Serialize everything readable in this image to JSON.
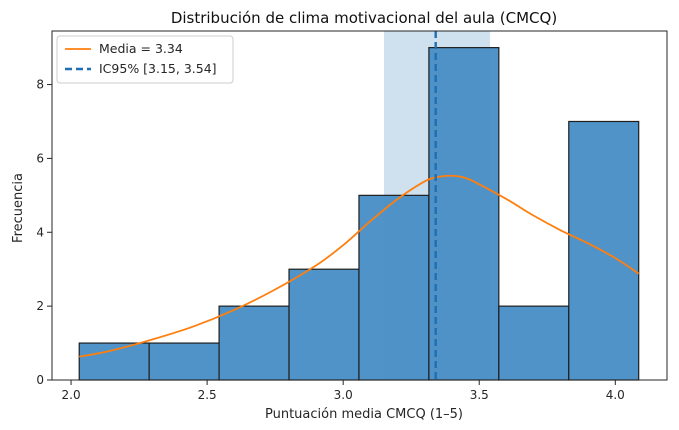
{
  "chart_data": {
    "type": "bar",
    "title": "Distribución de clima motivacional del aula (CMCQ)",
    "xlabel": "Puntuación media CMCQ (1–5)",
    "ylabel": "Frecuencia",
    "xlim": [
      1.93,
      4.19
    ],
    "ylim": [
      0,
      9.45
    ],
    "x_ticks": [
      2.0,
      2.5,
      3.0,
      3.5,
      4.0
    ],
    "x_tick_labels": [
      "2.0",
      "2.5",
      "3.0",
      "3.5",
      "4.0"
    ],
    "y_ticks": [
      0,
      2,
      4,
      6,
      8
    ],
    "y_tick_labels": [
      "0",
      "2",
      "4",
      "6",
      "8"
    ],
    "bins": [
      {
        "x0": 2.03,
        "x1": 2.287,
        "count": 1
      },
      {
        "x0": 2.287,
        "x1": 2.544,
        "count": 1
      },
      {
        "x0": 2.544,
        "x1": 2.801,
        "count": 2
      },
      {
        "x0": 2.801,
        "x1": 3.058,
        "count": 3
      },
      {
        "x0": 3.058,
        "x1": 3.315,
        "count": 5
      },
      {
        "x0": 3.315,
        "x1": 3.572,
        "count": 9
      },
      {
        "x0": 3.572,
        "x1": 3.829,
        "count": 2
      },
      {
        "x0": 3.829,
        "x1": 4.086,
        "count": 7
      }
    ],
    "kde": {
      "name": "Media = 3.34",
      "x": [
        2.03,
        2.15,
        2.3,
        2.45,
        2.6,
        2.75,
        2.9,
        3.0,
        3.1,
        3.2,
        3.3,
        3.35,
        3.4,
        3.45,
        3.5,
        3.6,
        3.7,
        3.8,
        3.9,
        4.0,
        4.086
      ],
      "y": [
        0.63,
        0.8,
        1.1,
        1.45,
        1.9,
        2.45,
        3.1,
        3.65,
        4.3,
        4.9,
        5.38,
        5.5,
        5.53,
        5.47,
        5.3,
        4.9,
        4.45,
        4.05,
        3.7,
        3.3,
        2.88
      ]
    },
    "mean": 3.34,
    "ci95": [
      3.15,
      3.54
    ],
    "legend": {
      "placement": "top-left",
      "entries": [
        "Media = 3.34",
        "IC95% [3.15, 3.54]"
      ]
    },
    "grid": false,
    "colors": {
      "bar": "#4a8fc6",
      "bar_edge": "#1f1f1f",
      "kde": "#ff7f0e",
      "mean_line": "#1f6fb2",
      "ci_band": "#cfe0ef"
    }
  }
}
